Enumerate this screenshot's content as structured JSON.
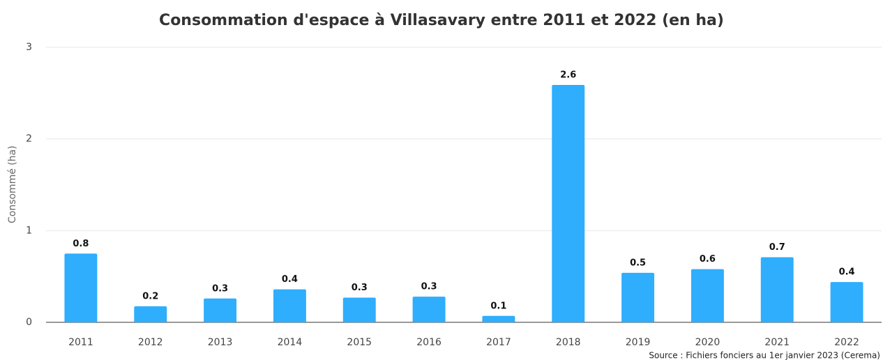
{
  "chart_data": {
    "type": "bar",
    "title": "Consommation d'espace à Villasavary entre 2011 et 2022 (en ha)",
    "y_label": "Consommé (ha)",
    "source": "Source : Fichiers fonciers au 1er janvier 2023 (Cerema)",
    "categories": [
      "2011",
      "2012",
      "2013",
      "2014",
      "2015",
      "2016",
      "2017",
      "2018",
      "2019",
      "2020",
      "2021",
      "2022"
    ],
    "values": [
      0.75,
      0.175,
      0.26,
      0.36,
      0.27,
      0.28,
      0.07,
      2.59,
      0.54,
      0.58,
      0.71,
      0.44
    ],
    "value_labels": [
      "0.8",
      "0.2",
      "0.3",
      "0.4",
      "0.3",
      "0.3",
      "0.1",
      "2.6",
      "0.5",
      "0.6",
      "0.7",
      "0.4"
    ],
    "color": "#2eaefd",
    "ylim": [
      0,
      3
    ],
    "yticks": [
      0,
      1,
      2,
      3
    ],
    "grid": true
  }
}
